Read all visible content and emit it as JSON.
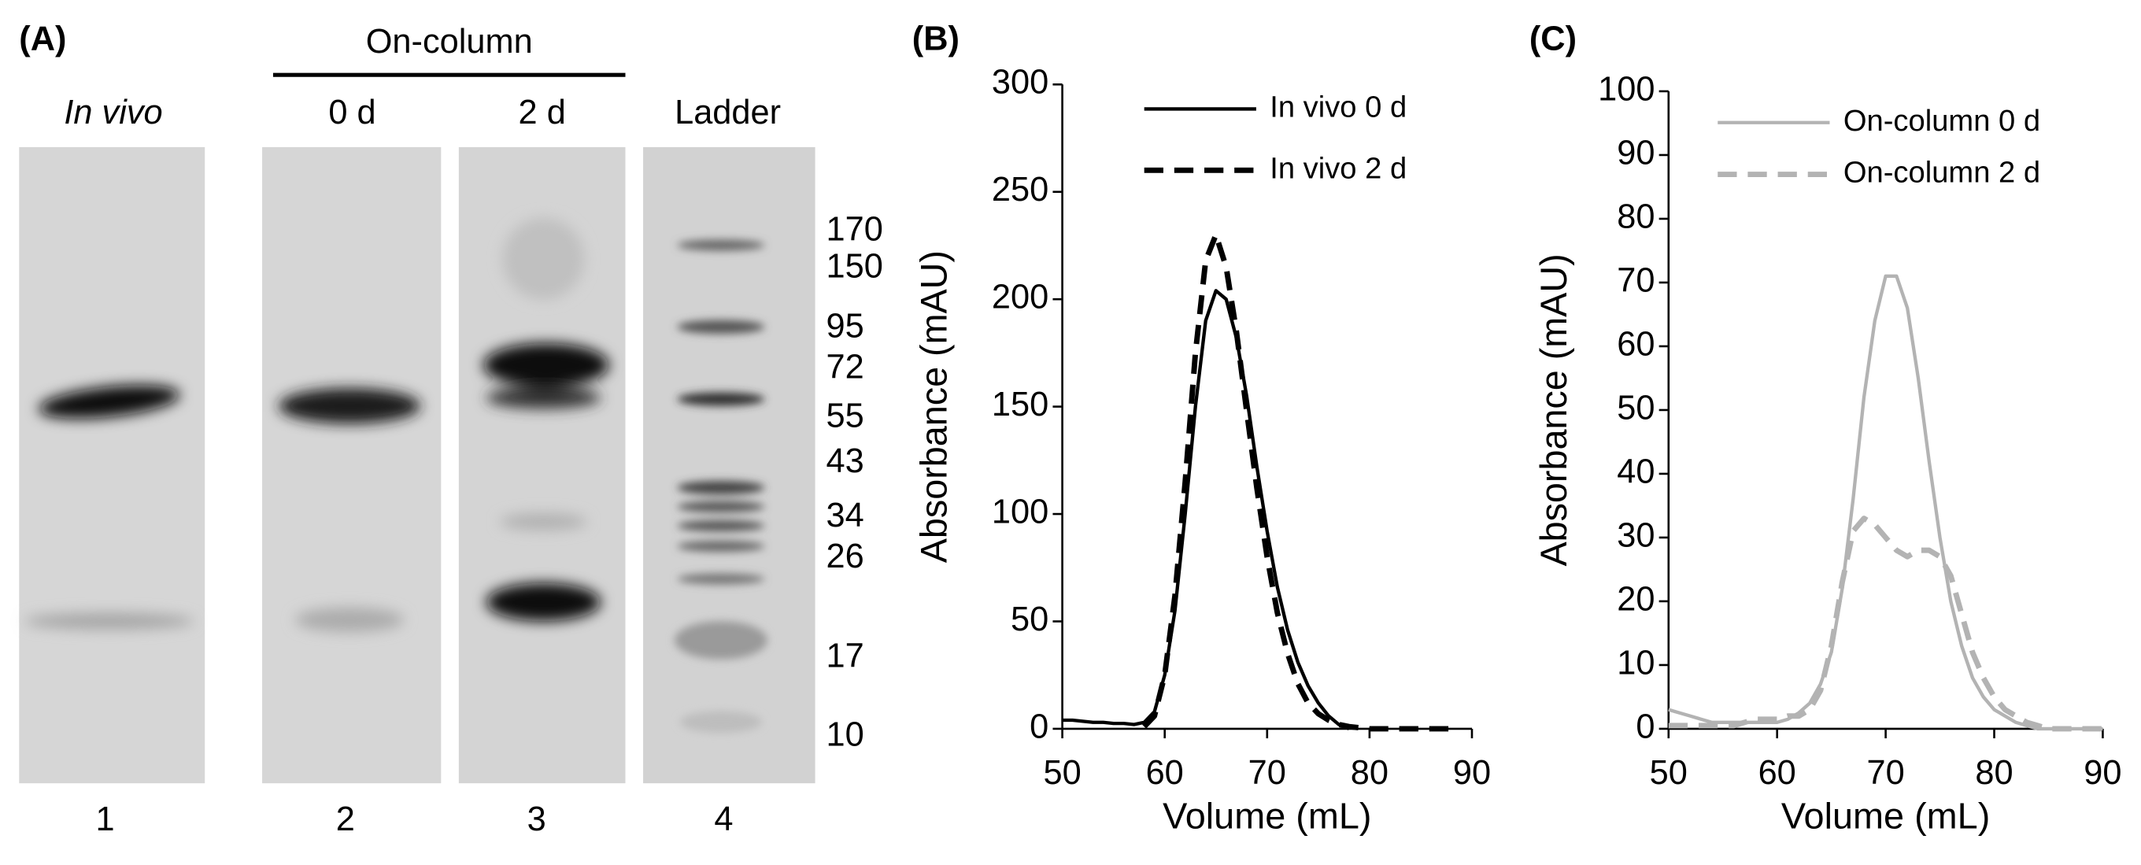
{
  "gel": {
    "panel_label": "(A)",
    "group_label": "On-column",
    "lanes": [
      {
        "label": "In vivo",
        "number": 1
      },
      {
        "label": "0 d",
        "number": 2
      },
      {
        "label": "2 d",
        "number": 3
      },
      {
        "label": "Ladder",
        "number": 4
      }
    ],
    "ladder_kda": [
      170,
      150,
      95,
      72,
      55,
      43,
      34,
      26,
      17,
      10
    ]
  },
  "chart_data": [
    {
      "type": "line",
      "panel_label": "(B)",
      "xlabel": "Volume (mL)",
      "ylabel": "Absorbance (mAU)",
      "legend": "upper right",
      "xlim": [
        50,
        90
      ],
      "xticks": [
        50,
        60,
        70,
        80,
        90
      ],
      "ylim": [
        0,
        300
      ],
      "yticks": [
        0,
        50,
        100,
        150,
        200,
        250,
        300
      ],
      "x": [
        50,
        51,
        52,
        53,
        54,
        55,
        56,
        57,
        58,
        59,
        60,
        61,
        62,
        63,
        64,
        65,
        66,
        67,
        68,
        69,
        70,
        71,
        72,
        73,
        74,
        75,
        76,
        77,
        78,
        79,
        80,
        81,
        82,
        83,
        84,
        85,
        86,
        87,
        88
      ],
      "series": [
        {
          "name": "In vivo 0 d",
          "color": "#000000",
          "line_style": "solid",
          "values": [
            4,
            4,
            3.5,
            3,
            3,
            2.5,
            2.5,
            2,
            3,
            8,
            25,
            55,
            100,
            150,
            190,
            204,
            200,
            182,
            155,
            122,
            92,
            66,
            46,
            31,
            20,
            12,
            6,
            2,
            0,
            null,
            null,
            null,
            null,
            null,
            null,
            null,
            null,
            null,
            null
          ]
        },
        {
          "name": "In vivo 2 d",
          "color": "#000000",
          "line_style": "dashed",
          "values": [
            null,
            null,
            null,
            null,
            null,
            null,
            null,
            null,
            1,
            6,
            25,
            62,
            115,
            175,
            218,
            230,
            215,
            185,
            148,
            112,
            80,
            54,
            35,
            21,
            12,
            7,
            4,
            2,
            1,
            0.5,
            0,
            0,
            0,
            0,
            0,
            0,
            0,
            0,
            0
          ]
        }
      ]
    },
    {
      "type": "line",
      "panel_label": "(C)",
      "xlabel": "Volume (mL)",
      "ylabel": "Absorbance (mAU)",
      "legend": "upper right",
      "xlim": [
        50,
        90
      ],
      "xticks": [
        50,
        60,
        70,
        80,
        90
      ],
      "ylim": [
        0,
        100
      ],
      "yticks": [
        0,
        10,
        20,
        30,
        40,
        50,
        60,
        70,
        80,
        90,
        100
      ],
      "x": [
        50,
        51,
        52,
        53,
        54,
        55,
        56,
        57,
        58,
        59,
        60,
        61,
        62,
        63,
        64,
        65,
        66,
        67,
        68,
        69,
        70,
        71,
        72,
        73,
        74,
        75,
        76,
        77,
        78,
        79,
        80,
        81,
        82,
        83,
        84,
        85,
        86,
        87,
        88,
        89,
        90
      ],
      "series": [
        {
          "name": "On-column 0 d",
          "color": "#b3b3b3",
          "line_style": "solid",
          "values": [
            3,
            2.5,
            2,
            1.5,
            1,
            1,
            1,
            1,
            1,
            1,
            1,
            1.5,
            2.5,
            4,
            7,
            12,
            22,
            36,
            52,
            64,
            71,
            71,
            66,
            55,
            42,
            30,
            20,
            13,
            8,
            5,
            3,
            2,
            1,
            0.5,
            0,
            0,
            0,
            0,
            0,
            0,
            0
          ]
        },
        {
          "name": "On-column 2 d",
          "color": "#b3b3b3",
          "line_style": "dashed",
          "values": [
            0.5,
            0.5,
            0.5,
            0.5,
            0.5,
            0.5,
            0.5,
            1,
            1.5,
            1.5,
            1.5,
            2,
            2,
            3,
            6,
            13,
            23,
            31,
            33,
            32,
            30,
            28,
            27,
            28,
            28,
            27,
            24,
            18,
            12,
            8,
            5,
            3,
            2,
            1,
            0.5,
            0,
            0,
            0,
            0,
            0,
            0
          ]
        }
      ]
    }
  ]
}
